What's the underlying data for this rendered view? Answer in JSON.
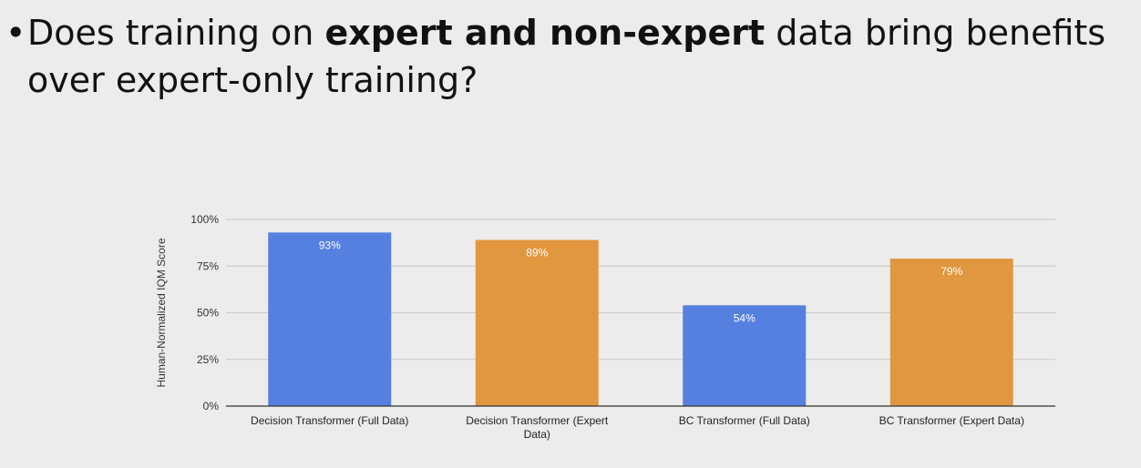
{
  "slide": {
    "bullet": "•",
    "question": {
      "part1": "Does training on ",
      "bold": "expert and non-expert",
      "part2": " data bring benefits over expert-only training?"
    }
  },
  "chart_data": {
    "type": "bar",
    "ylabel": "Human-Normalized IQM Score",
    "ylim": [
      0,
      100
    ],
    "yticks": [
      "0%",
      "25%",
      "50%",
      "75%",
      "100%"
    ],
    "grid": true,
    "categories": [
      [
        "Decision Transformer (Full Data)"
      ],
      [
        "Decision Transformer (Expert",
        "Data)"
      ],
      [
        "BC Transformer (Full Data)"
      ],
      [
        "BC Transformer (Expert Data)"
      ]
    ],
    "values": [
      93,
      89,
      54,
      79
    ],
    "data_labels": [
      "93%",
      "89%",
      "54%",
      "79%"
    ],
    "colors": [
      "#5580e0",
      "#e0973f",
      "#5580e0",
      "#e0973f"
    ],
    "gridline_color": "#c8c8c8",
    "axis_color": "#333333",
    "label_color": "#ffffff"
  }
}
